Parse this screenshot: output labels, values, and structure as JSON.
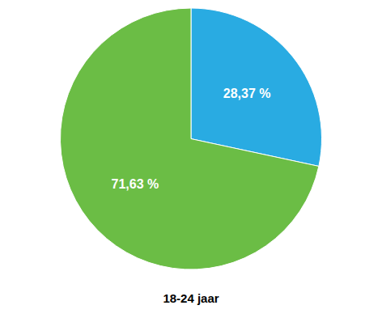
{
  "chart_data": {
    "type": "pie",
    "title": "18-24 jaar",
    "values": [
      28.37,
      71.63
    ],
    "value_labels": [
      "28,37 %",
      "71,63 %"
    ],
    "colors": [
      "#29ABE2",
      "#6BBD45"
    ],
    "data_labels": true
  }
}
